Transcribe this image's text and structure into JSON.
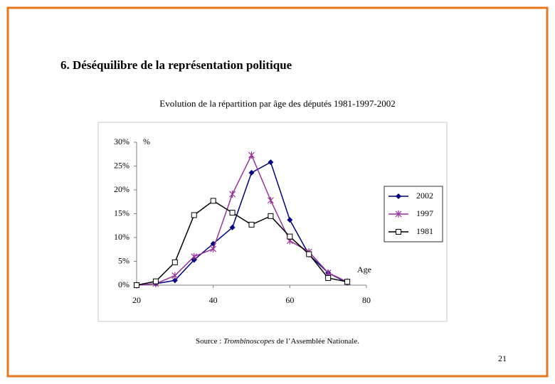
{
  "heading": "6. Déséquilibre de la représentation politique",
  "source": {
    "prefix": "Source : ",
    "italic": "Trombinoscopes",
    "suffix": " de l’Assemblée Nationale."
  },
  "page_number": "21",
  "chart_data": {
    "type": "line",
    "title": "Evolution de la répartition par âge des députés 1981-1997-2002",
    "y_label": "%",
    "x_label": "Age",
    "x": [
      20,
      25,
      30,
      35,
      40,
      45,
      50,
      55,
      60,
      65,
      70,
      75
    ],
    "series": [
      {
        "name": "2002",
        "color": "#000080",
        "marker": "diamond",
        "values": [
          0,
          0.3,
          1,
          5.3,
          8.7,
          12.1,
          23.6,
          25.8,
          13.7,
          6.4,
          2.6,
          0.5
        ]
      },
      {
        "name": "1997",
        "color": "#993399",
        "marker": "star",
        "values": [
          0,
          0.3,
          2,
          6,
          7.6,
          19.1,
          27.3,
          17.8,
          9.3,
          7,
          2.6,
          0.7
        ]
      },
      {
        "name": "1981",
        "color": "#000000",
        "marker": "square",
        "values": [
          0,
          0.8,
          4.8,
          14.7,
          17.7,
          15.2,
          12.7,
          14.5,
          10.2,
          6.5,
          1.5,
          0.7
        ]
      }
    ],
    "xlim": [
      20,
      80
    ],
    "xticks": [
      20,
      40,
      60,
      80
    ],
    "ylim": [
      0,
      30
    ],
    "yticks": [
      {
        "value": 0,
        "label": "0%"
      },
      {
        "value": 5,
        "label": "5%"
      },
      {
        "value": 10,
        "label": "10%"
      },
      {
        "value": 15,
        "label": "15%"
      },
      {
        "value": 20,
        "label": "20%"
      },
      {
        "value": 25,
        "label": "25%"
      },
      {
        "value": 30,
        "label": "30%"
      }
    ],
    "grid": false,
    "legend": "right"
  }
}
